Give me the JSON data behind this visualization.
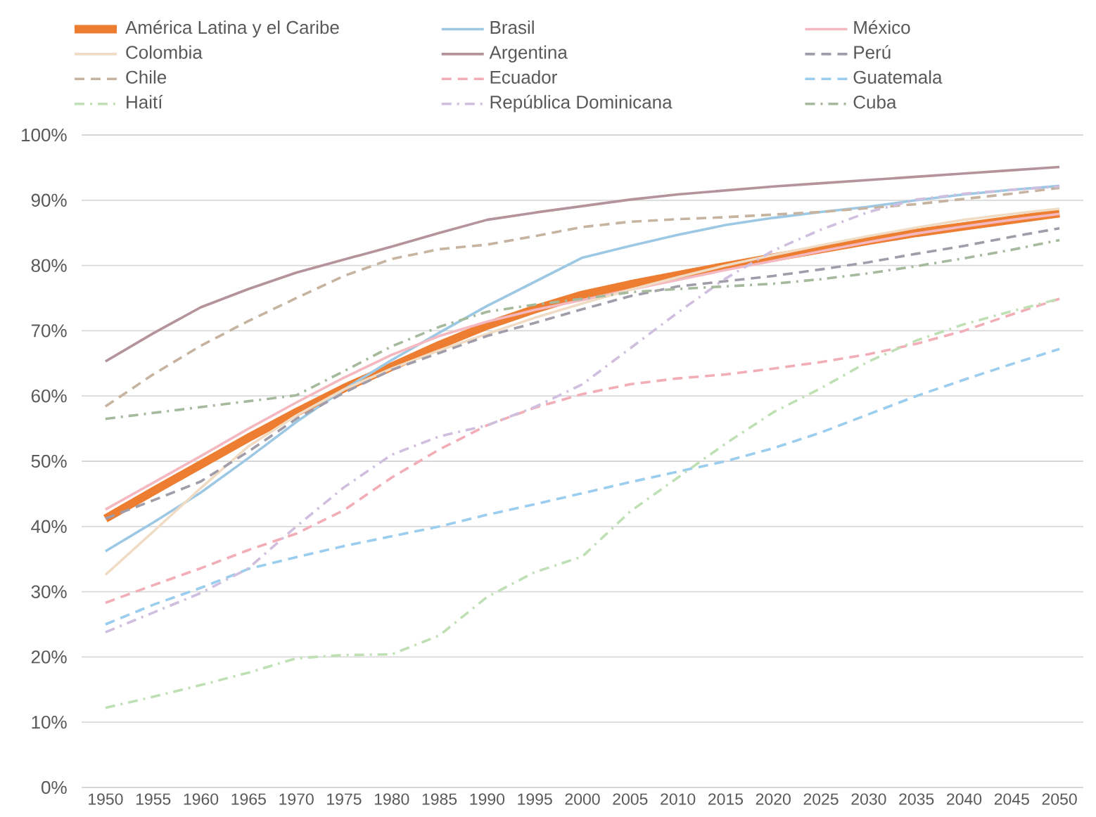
{
  "chart_data": {
    "type": "line",
    "categories": [
      "1950",
      "1955",
      "1960",
      "1965",
      "1970",
      "1975",
      "1980",
      "1985",
      "1990",
      "1995",
      "2000",
      "2005",
      "2010",
      "2015",
      "2020",
      "2025",
      "2030",
      "2035",
      "2040",
      "2045",
      "2050"
    ],
    "series": [
      {
        "name": "América Latina y el Caribe",
        "color": "#ED7D31",
        "line_style": "solid",
        "values": [
          41.2,
          45.4,
          49.5,
          53.6,
          57.5,
          61.2,
          64.5,
          67.8,
          70.8,
          73.3,
          75.5,
          77.1,
          78.5,
          79.9,
          81.2,
          82.5,
          83.8,
          85.0,
          86.0,
          87.0,
          88.0
        ]
      },
      {
        "name": "Brasil",
        "color": "#9DC8E4",
        "line_style": "solid",
        "values": [
          36.2,
          40.6,
          45.2,
          50.5,
          56.0,
          61.0,
          65.5,
          69.7,
          73.8,
          77.5,
          81.2,
          83.0,
          84.7,
          86.2,
          87.3,
          88.2,
          89.0,
          90.0,
          90.9,
          91.6,
          92.2
        ]
      },
      {
        "name": "México",
        "color": "#F4B8C0",
        "line_style": "solid",
        "values": [
          42.6,
          46.7,
          50.8,
          55.0,
          59.0,
          62.8,
          66.3,
          69.2,
          71.4,
          73.2,
          74.7,
          76.3,
          77.8,
          79.3,
          80.7,
          82.2,
          83.6,
          84.9,
          86.0,
          87.0,
          87.9
        ]
      },
      {
        "name": "Colombia",
        "color": "#F0DCC4",
        "line_style": "solid",
        "values": [
          32.6,
          39.2,
          45.9,
          52.3,
          57.0,
          61.0,
          64.2,
          67.0,
          69.5,
          72.0,
          74.2,
          76.3,
          78.2,
          80.0,
          81.6,
          83.1,
          84.5,
          85.8,
          87.0,
          87.9,
          88.7
        ]
      },
      {
        "name": "Argentina",
        "color": "#B4939B",
        "line_style": "solid",
        "values": [
          65.3,
          69.6,
          73.6,
          76.4,
          78.9,
          80.9,
          82.9,
          85.0,
          87.0,
          88.1,
          89.1,
          90.1,
          90.9,
          91.5,
          92.1,
          92.6,
          93.1,
          93.6,
          94.1,
          94.6,
          95.1
        ]
      },
      {
        "name": "Perú",
        "color": "#A19CAA",
        "line_style": "dashed",
        "values": [
          41.2,
          44.0,
          46.9,
          51.5,
          56.5,
          60.5,
          64.0,
          66.6,
          69.2,
          71.2,
          73.3,
          75.3,
          76.8,
          77.6,
          78.4,
          79.4,
          80.5,
          81.8,
          83.0,
          84.4,
          85.7
        ]
      },
      {
        "name": "Chile",
        "color": "#C6B4A0",
        "line_style": "dashed",
        "values": [
          58.4,
          63.3,
          67.7,
          71.5,
          75.0,
          78.4,
          81.0,
          82.5,
          83.2,
          84.5,
          85.9,
          86.7,
          87.1,
          87.4,
          87.8,
          88.2,
          88.8,
          89.4,
          90.2,
          91.0,
          91.9
        ]
      },
      {
        "name": "Ecuador",
        "color": "#F2AEB6",
        "line_style": "dashed",
        "values": [
          28.3,
          31.0,
          33.6,
          36.4,
          38.9,
          42.5,
          47.5,
          51.8,
          55.5,
          58.2,
          60.3,
          61.8,
          62.7,
          63.3,
          64.2,
          65.2,
          66.4,
          68.0,
          70.0,
          72.5,
          74.9
        ]
      },
      {
        "name": "Guatemala",
        "color": "#9ACDEE",
        "line_style": "dashed",
        "values": [
          25.0,
          28.0,
          30.6,
          33.5,
          35.3,
          37.0,
          38.5,
          40.0,
          41.8,
          43.4,
          45.1,
          46.8,
          48.4,
          50.0,
          52.0,
          54.4,
          57.2,
          60.0,
          62.5,
          64.9,
          67.2
        ]
      },
      {
        "name": "Haití",
        "color": "#BFE0B5",
        "line_style": "dashdot",
        "values": [
          12.2,
          13.9,
          15.7,
          17.6,
          19.8,
          20.3,
          20.4,
          23.3,
          29.2,
          33.0,
          35.4,
          42.3,
          47.5,
          52.7,
          57.5,
          61.2,
          65.3,
          68.5,
          71.0,
          73.0,
          74.9
        ]
      },
      {
        "name": "República Dominicana",
        "color": "#D0BEDF",
        "line_style": "dashdot",
        "values": [
          23.8,
          26.8,
          29.8,
          33.6,
          40.0,
          46.0,
          51.0,
          53.8,
          55.5,
          58.3,
          61.8,
          67.3,
          72.8,
          78.0,
          82.3,
          85.5,
          88.2,
          90.1,
          91.0,
          91.6,
          92.1
        ]
      },
      {
        "name": "Cuba",
        "color": "#A5B99C",
        "line_style": "dashdot",
        "values": [
          56.5,
          57.4,
          58.3,
          59.2,
          60.1,
          63.8,
          67.6,
          70.6,
          72.9,
          74.0,
          74.9,
          75.9,
          76.4,
          76.8,
          77.2,
          77.9,
          78.8,
          79.9,
          81.1,
          82.4,
          83.9
        ]
      }
    ],
    "ylim": [
      0,
      100
    ],
    "yticks": [
      {
        "value": 0,
        "label": "0%"
      },
      {
        "value": 10,
        "label": "10%"
      },
      {
        "value": 20,
        "label": "20%"
      },
      {
        "value": 30,
        "label": "30%"
      },
      {
        "value": 40,
        "label": "40%"
      },
      {
        "value": 50,
        "label": "50%"
      },
      {
        "value": 60,
        "label": "60%"
      },
      {
        "value": 70,
        "label": "70%"
      },
      {
        "value": 80,
        "label": "80%"
      },
      {
        "value": 90,
        "label": "90%"
      },
      {
        "value": 100,
        "label": "100%"
      }
    ],
    "grid": "y",
    "legend": "top"
  }
}
